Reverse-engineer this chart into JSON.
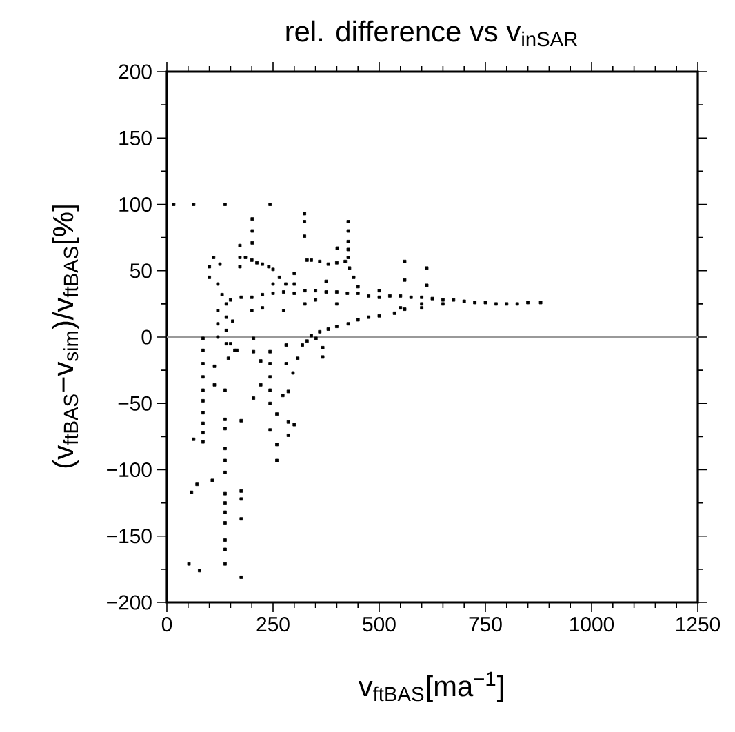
{
  "chart_data": {
    "type": "scatter",
    "title": "rel. difference vs v$_{inSAR}$",
    "xlabel": "v$_{ftBAS}$[ma$^{−1}$]",
    "ylabel": "(v$_{ftBAS}$−v$_{sim}$)/v$_{ftBAS}$[%]",
    "xlim": [
      0,
      1250
    ],
    "xticks": [
      0,
      250,
      500,
      750,
      1000,
      1250
    ],
    "ylim": [
      -200,
      200
    ],
    "yticks": [
      {
        "value": -200,
        "label": "−200"
      },
      {
        "value": -150,
        "label": "−150"
      },
      {
        "value": -100,
        "label": "−100"
      },
      {
        "value": -50,
        "label": "−50"
      },
      0,
      50,
      100,
      150,
      200
    ],
    "marker": "square",
    "ref_lines": [
      {
        "axis": "y",
        "value": 0,
        "color": "#999999"
      }
    ],
    "series": [
      {
        "color": "#000000",
        "x": [
          16,
          63,
          137,
          243,
          201,
          201,
          201,
          324,
          324,
          324,
          427,
          427,
          427,
          427,
          427,
          401,
          560,
          560,
          612,
          612,
          172,
          172,
          172,
          185,
          200,
          212,
          225,
          240,
          250,
          265,
          280,
          300,
          330,
          340,
          360,
          380,
          400,
          420,
          430,
          440,
          130,
          150,
          175,
          200,
          225,
          250,
          275,
          300,
          325,
          350,
          375,
          400,
          425,
          450,
          475,
          500,
          525,
          550,
          575,
          600,
          625,
          650,
          675,
          700,
          725,
          750,
          775,
          800,
          825,
          850,
          880,
          200,
          225,
          250,
          275,
          300,
          325,
          350,
          375,
          400,
          450,
          500,
          550,
          600,
          650,
          340,
          360,
          380,
          400,
          427,
          450,
          475,
          500,
          536,
          560,
          600,
          100,
          100,
          120,
          120,
          120,
          120,
          140,
          140,
          140,
          140,
          155,
          160,
          110,
          125,
          85,
          85,
          85,
          85,
          85,
          85,
          85,
          85,
          85,
          85,
          63,
          112,
          112,
          107,
          58,
          71,
          52,
          77,
          137,
          137,
          137,
          137,
          137,
          137,
          137,
          137,
          137,
          137,
          137,
          137,
          137,
          175,
          175,
          175,
          175,
          175,
          150,
          145,
          165,
          204,
          204,
          204,
          221,
          221,
          243,
          243,
          243,
          243,
          243,
          243,
          259,
          259,
          259,
          273,
          286,
          286,
          300,
          286,
          297,
          308,
          319,
          351,
          281,
          281,
          367,
          367,
          330
        ],
        "values": [
          100,
          100,
          100,
          100,
          89,
          80,
          71,
          93,
          87,
          76,
          87,
          80,
          72,
          66,
          60,
          67,
          57,
          43,
          52,
          39,
          69,
          60,
          53,
          60,
          58,
          56,
          55,
          53,
          51,
          45,
          40,
          48,
          58,
          58,
          57,
          55,
          56,
          57,
          52,
          45,
          32,
          28,
          30,
          30,
          32,
          33,
          34,
          33,
          35,
          35,
          34,
          34,
          33,
          33,
          31,
          30,
          31,
          31,
          30,
          30,
          29,
          28,
          28,
          27,
          26,
          26,
          25,
          25,
          25,
          26,
          26,
          20,
          22,
          40,
          20,
          40,
          25,
          28,
          42,
          25,
          38,
          35,
          22,
          22,
          25,
          1,
          4,
          6,
          8,
          10,
          13,
          15,
          16,
          18,
          21,
          25,
          53,
          45,
          40,
          20,
          10,
          0,
          25,
          15,
          5,
          -5,
          12,
          -10,
          60,
          55,
          -1,
          -10,
          -20,
          -30,
          -40,
          -48,
          -57,
          -65,
          -72,
          -79,
          -77,
          -22,
          -36,
          -108,
          -117,
          -111,
          -171,
          -176,
          -40,
          -62,
          -69,
          -84,
          -93,
          -102,
          -118,
          -125,
          -132,
          -140,
          -153,
          -160,
          -171,
          -63,
          -116,
          -122,
          -137,
          -181,
          -5,
          -16,
          -10,
          -1,
          -11,
          -46,
          -18,
          -36,
          -11,
          -20,
          -30,
          -40,
          -50,
          -70,
          -58,
          -81,
          -93,
          -44,
          -64,
          -74,
          -66,
          -41,
          -27,
          -16,
          -6,
          -1,
          -6,
          -20,
          -8,
          -15,
          -3
        ]
      }
    ]
  }
}
